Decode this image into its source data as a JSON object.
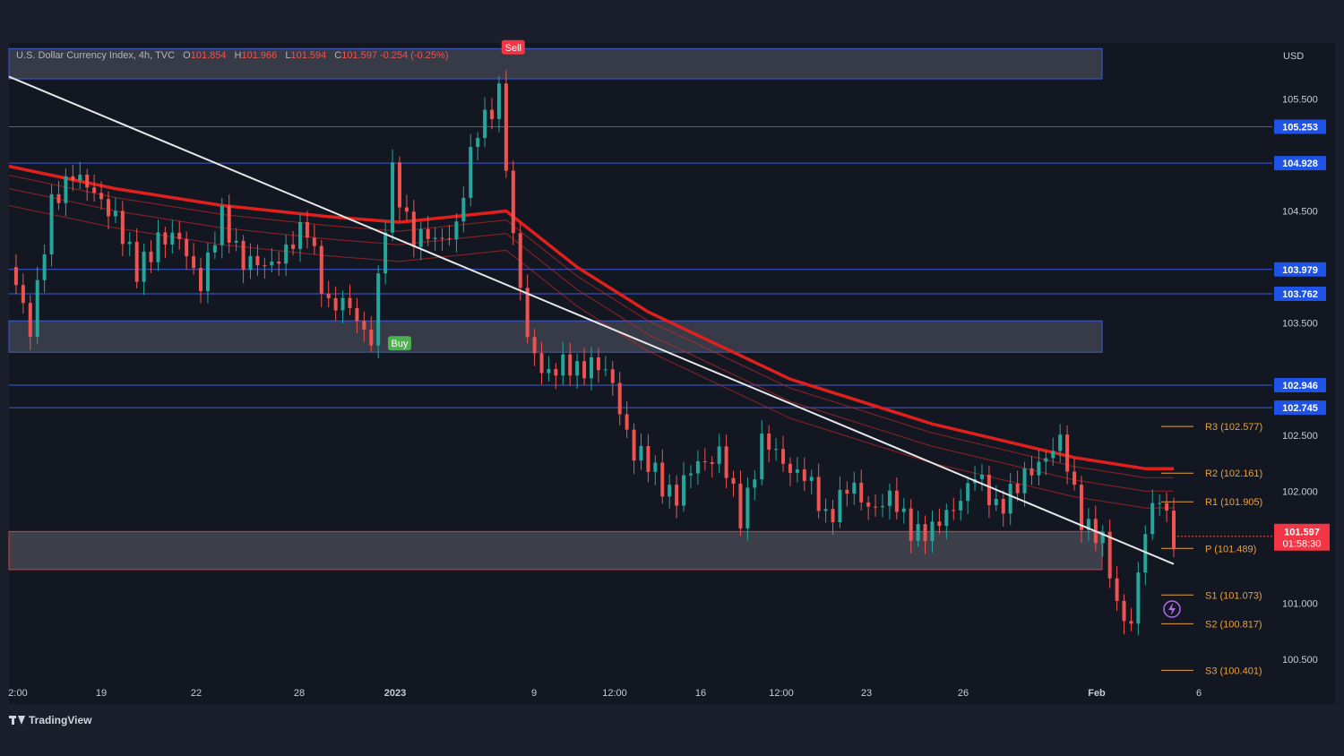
{
  "app": {
    "brand": "TradingView",
    "currency": "USD"
  },
  "legend": {
    "symbol": "U.S. Dollar Currency Index, 4h, TVC",
    "o_label": "O",
    "o_value": "101.854",
    "h_label": "H",
    "h_value": "101.966",
    "l_label": "L",
    "l_value": "101.594",
    "c_label": "C",
    "c_value": "101.597",
    "change": "-0.254 (-0.25%)"
  },
  "signals": {
    "sell": "Sell",
    "buy": "Buy"
  },
  "last_price": {
    "value": "101.597",
    "countdown": "01:58:30"
  },
  "colors": {
    "up": "#26a69a",
    "down": "#ef5350",
    "ema_main": "#e0201c",
    "trend": "#e8e8e8",
    "zone": "#3a4a8c",
    "pivot": "#e8a23c",
    "axis_badge": "#1e53e5",
    "bg": "#131722"
  },
  "chart_data": {
    "type": "candlestick",
    "title": "U.S. Dollar Currency Index, 4h, TVC",
    "xlabel": "",
    "ylabel": "USD",
    "ylim": [
      100.1,
      106.0
    ],
    "y_ticks": [
      "105.500",
      "104.500",
      "103.500",
      "102.500",
      "102.000",
      "101.000",
      "100.500"
    ],
    "x_ticks": [
      "2:00",
      "19",
      "22",
      "28",
      "2023",
      "9",
      "12:00",
      "16",
      "12:00",
      "23",
      "26",
      "Feb",
      "6"
    ],
    "price_badges": [
      "105.253",
      "104.928",
      "103.979",
      "103.762",
      "102.946",
      "102.745"
    ],
    "horizontal_levels": [
      105.253,
      104.928,
      103.979,
      103.762,
      102.946,
      102.745
    ],
    "zones": [
      {
        "from": 105.68,
        "to": 105.95,
        "color": "blue"
      },
      {
        "from": 103.24,
        "to": 103.52,
        "color": "blue"
      },
      {
        "from": 101.3,
        "to": 101.64,
        "color": "red"
      }
    ],
    "pivots": [
      {
        "label": "R3 (102.577)",
        "value": 102.577
      },
      {
        "label": "R2 (102.161)",
        "value": 102.161
      },
      {
        "label": "R1 (101.905)",
        "value": 101.905
      },
      {
        "label": "P (101.489)",
        "value": 101.489
      },
      {
        "label": "S1 (101.073)",
        "value": 101.073
      },
      {
        "label": "S2 (100.817)",
        "value": 100.817
      },
      {
        "label": "S3 (100.401)",
        "value": 100.401
      }
    ],
    "close_path": [
      [
        0,
        104.0
      ],
      [
        6,
        103.5
      ],
      [
        12,
        104.5
      ],
      [
        18,
        104.9
      ],
      [
        24,
        104.6
      ],
      [
        30,
        104.5
      ],
      [
        36,
        103.9
      ],
      [
        42,
        104.3
      ],
      [
        48,
        104.2
      ],
      [
        54,
        103.9
      ],
      [
        60,
        104.4
      ],
      [
        66,
        104.1
      ],
      [
        72,
        103.95
      ],
      [
        78,
        104.2
      ],
      [
        84,
        104.3
      ],
      [
        90,
        103.7
      ],
      [
        96,
        103.6
      ],
      [
        102,
        103.4
      ],
      [
        108,
        104.8
      ],
      [
        114,
        104.3
      ],
      [
        120,
        104.2
      ],
      [
        126,
        104.4
      ],
      [
        132,
        105.2
      ],
      [
        138,
        105.6
      ],
      [
        142,
        104.2
      ],
      [
        146,
        103.4
      ],
      [
        152,
        103.0
      ],
      [
        158,
        103.15
      ],
      [
        164,
        103.1
      ],
      [
        170,
        103.0
      ],
      [
        176,
        102.3
      ],
      [
        182,
        102.2
      ],
      [
        188,
        101.9
      ],
      [
        194,
        102.3
      ],
      [
        200,
        102.3
      ],
      [
        206,
        101.8
      ],
      [
        212,
        102.4
      ],
      [
        218,
        102.3
      ],
      [
        224,
        102.1
      ],
      [
        230,
        101.8
      ],
      [
        236,
        102.0
      ],
      [
        242,
        101.9
      ],
      [
        248,
        101.9
      ],
      [
        254,
        101.7
      ],
      [
        260,
        101.6
      ],
      [
        266,
        101.9
      ],
      [
        272,
        102.1
      ],
      [
        278,
        101.9
      ],
      [
        284,
        102.0
      ],
      [
        290,
        102.3
      ],
      [
        296,
        102.4
      ],
      [
        302,
        101.8
      ],
      [
        308,
        101.5
      ],
      [
        312,
        101.0
      ],
      [
        316,
        100.85
      ],
      [
        320,
        101.6
      ],
      [
        324,
        102.0
      ],
      [
        328,
        101.6
      ]
    ],
    "ema_main": [
      [
        0,
        104.9
      ],
      [
        30,
        104.7
      ],
      [
        60,
        104.55
      ],
      [
        90,
        104.45
      ],
      [
        110,
        104.4
      ],
      [
        140,
        104.5
      ],
      [
        160,
        104.0
      ],
      [
        180,
        103.6
      ],
      [
        200,
        103.3
      ],
      [
        220,
        103.0
      ],
      [
        240,
        102.8
      ],
      [
        260,
        102.6
      ],
      [
        280,
        102.45
      ],
      [
        300,
        102.3
      ],
      [
        320,
        102.2
      ],
      [
        328,
        102.2
      ]
    ],
    "trend_line": [
      [
        0,
        105.7
      ],
      [
        328,
        101.35
      ]
    ],
    "signal_points": [
      {
        "label": "Sell",
        "x": 142,
        "y": 105.85
      },
      {
        "label": "Buy",
        "x": 110,
        "y": 103.4
      }
    ]
  }
}
